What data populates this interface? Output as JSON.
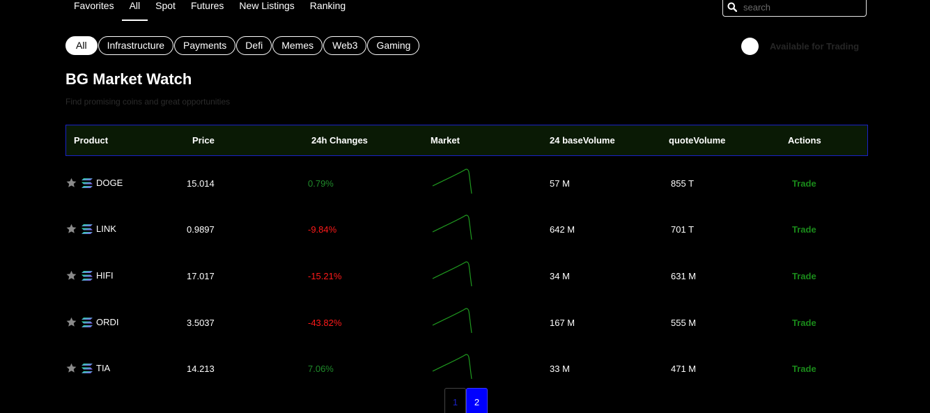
{
  "nav": {
    "tabs": [
      {
        "label": "Favorites"
      },
      {
        "label": "All"
      },
      {
        "label": "Spot"
      },
      {
        "label": "Futures"
      },
      {
        "label": "New Listings"
      },
      {
        "label": "Ranking"
      }
    ],
    "active_tab": "All"
  },
  "search": {
    "placeholder": "search",
    "value": ""
  },
  "categories": [
    {
      "label": "All"
    },
    {
      "label": "Infrastructure"
    },
    {
      "label": "Payments"
    },
    {
      "label": "Defi"
    },
    {
      "label": "Memes"
    },
    {
      "label": "Web3"
    },
    {
      "label": "Gaming"
    }
  ],
  "toggle": {
    "label": "Available for Trading"
  },
  "page": {
    "title": "BG Market Watch",
    "subtitle": "Find promising coins and great opportunities"
  },
  "table": {
    "headers": [
      "Product",
      "Price",
      "24h Changes",
      "Market",
      "24 baseVolume",
      "quoteVolume",
      "Actions"
    ],
    "rows": [
      {
        "name": "DOGE",
        "price": "15.014",
        "change": "0.79%",
        "trend": "positive",
        "base_volume": "57 M",
        "quote_volume": "855 T",
        "action": "Trade"
      },
      {
        "name": "LINK",
        "price": "0.9897",
        "change": "-9.84%",
        "trend": "negative",
        "base_volume": "642 M",
        "quote_volume": "701 T",
        "action": "Trade"
      },
      {
        "name": "HIFI",
        "price": "17.017",
        "change": "-15.21%",
        "trend": "negative",
        "base_volume": "34 M",
        "quote_volume": "631 M",
        "action": "Trade"
      },
      {
        "name": "ORDI",
        "price": "3.5037",
        "change": "-43.82%",
        "trend": "negative",
        "base_volume": "167 M",
        "quote_volume": "555 M",
        "action": "Trade"
      },
      {
        "name": "TIA",
        "price": "14.213",
        "change": "7.06%",
        "trend": "positive",
        "base_volume": "33 M",
        "quote_volume": "471 M",
        "action": "Trade"
      }
    ]
  },
  "pagination": {
    "pages": [
      "1",
      "2"
    ],
    "current": "2"
  },
  "colors": {
    "positive": "#1f8a2a",
    "negative": "#ff1a1a",
    "trade": "#1a8a1a",
    "header_bg": "#0a1a05",
    "header_border": "#1a22c8",
    "page_active": "#0000ff",
    "sparkline": "#1f9a1f"
  },
  "icons": {
    "star": "star-icon",
    "coin": "coin-icon",
    "search": "search-icon"
  }
}
